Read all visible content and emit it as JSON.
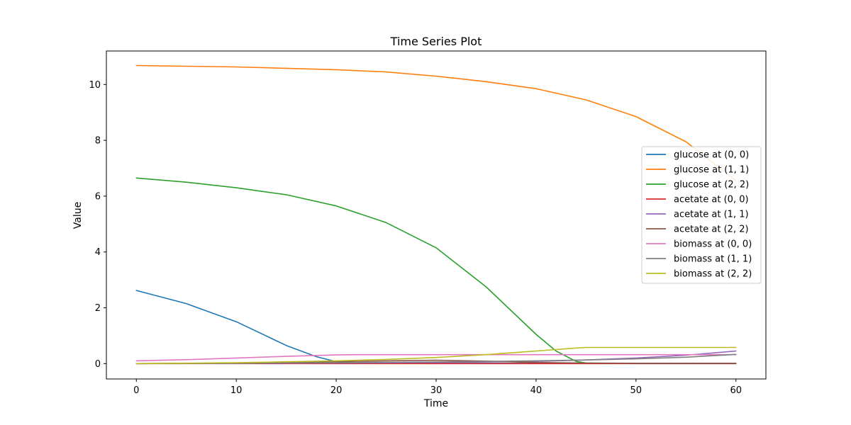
{
  "chart_data": {
    "type": "line",
    "title": "Time Series Plot",
    "xlabel": "Time",
    "ylabel": "Value",
    "xlim": [
      -3,
      63
    ],
    "ylim": [
      -0.55,
      11.2
    ],
    "xticks": [
      0,
      10,
      20,
      30,
      40,
      50,
      60
    ],
    "yticks": [
      0,
      2,
      4,
      6,
      8,
      10
    ],
    "grid": false,
    "legend_position": "center-right",
    "series": [
      {
        "name": "glucose at (0, 0)",
        "color": "#1f77b4",
        "x": [
          0,
          5,
          10,
          15,
          18,
          20,
          22,
          25,
          30,
          40,
          50,
          60
        ],
        "y": [
          2.62,
          2.15,
          1.5,
          0.65,
          0.25,
          0.07,
          0.02,
          0.01,
          0.01,
          0.01,
          0.01,
          0.01
        ]
      },
      {
        "name": "glucose at (1, 1)",
        "color": "#ff7f0e",
        "x": [
          0,
          10,
          20,
          25,
          30,
          35,
          40,
          45,
          50,
          55,
          60
        ],
        "y": [
          10.68,
          10.63,
          10.53,
          10.45,
          10.3,
          10.1,
          9.85,
          9.45,
          8.85,
          7.95,
          6.55
        ]
      },
      {
        "name": "glucose at (2, 2)",
        "color": "#2ca02c",
        "x": [
          0,
          5,
          10,
          15,
          20,
          25,
          30,
          35,
          40,
          42,
          44,
          45,
          50,
          60
        ],
        "y": [
          6.65,
          6.5,
          6.3,
          6.05,
          5.65,
          5.05,
          4.15,
          2.75,
          1.05,
          0.45,
          0.08,
          0.02,
          0.0,
          0.0
        ]
      },
      {
        "name": "acetate at (0, 0)",
        "color": "#d62728",
        "x": [
          0,
          10,
          20,
          30,
          40,
          50,
          60
        ],
        "y": [
          0.0,
          0.0,
          0.0,
          0.0,
          0.0,
          0.0,
          0.0
        ]
      },
      {
        "name": "acetate at (1, 1)",
        "color": "#9467bd",
        "x": [
          0,
          10,
          20,
          30,
          40,
          45,
          50,
          55,
          60
        ],
        "y": [
          0.0,
          0.01,
          0.02,
          0.04,
          0.08,
          0.13,
          0.2,
          0.3,
          0.45
        ]
      },
      {
        "name": "acetate at (2, 2)",
        "color": "#8c564b",
        "x": [
          0,
          10,
          20,
          25,
          30,
          35,
          40,
          45,
          50,
          60
        ],
        "y": [
          0.0,
          0.02,
          0.07,
          0.1,
          0.12,
          0.09,
          0.04,
          0.02,
          0.01,
          0.01
        ]
      },
      {
        "name": "biomass at (0, 0)",
        "color": "#e377c2",
        "x": [
          0,
          5,
          10,
          15,
          20,
          22,
          30,
          40,
          50,
          60
        ],
        "y": [
          0.1,
          0.14,
          0.2,
          0.26,
          0.31,
          0.32,
          0.32,
          0.32,
          0.32,
          0.32
        ]
      },
      {
        "name": "biomass at (1, 1)",
        "color": "#7f7f7f",
        "x": [
          0,
          10,
          20,
          30,
          40,
          45,
          50,
          55,
          60
        ],
        "y": [
          0.0,
          0.01,
          0.03,
          0.06,
          0.1,
          0.13,
          0.17,
          0.23,
          0.33
        ]
      },
      {
        "name": "biomass at (2, 2)",
        "color": "#bcbd22",
        "x": [
          0,
          10,
          20,
          25,
          30,
          35,
          40,
          44,
          45,
          50,
          60
        ],
        "y": [
          0.0,
          0.03,
          0.1,
          0.15,
          0.22,
          0.32,
          0.45,
          0.56,
          0.58,
          0.58,
          0.58
        ]
      }
    ]
  }
}
